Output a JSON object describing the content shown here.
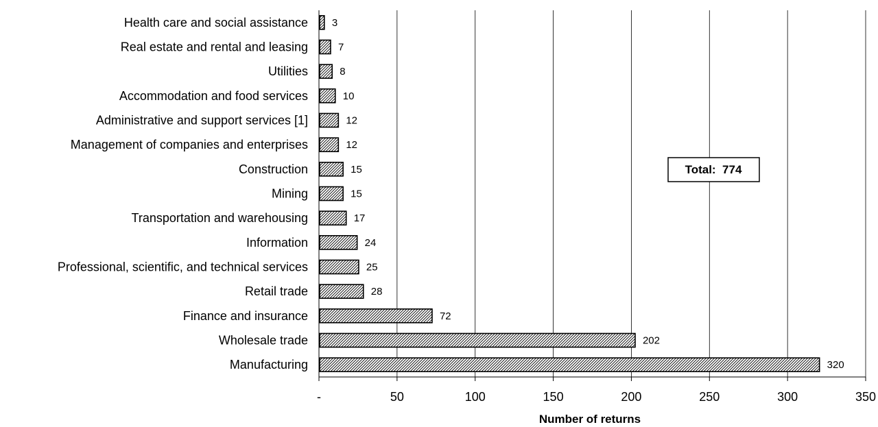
{
  "chart_data": {
    "type": "bar",
    "orientation": "horizontal",
    "categories": [
      "Health care and social assistance",
      "Real estate and rental and leasing",
      "Utilities",
      "Accommodation and food services",
      "Administrative and support services [1]",
      "Management of companies and enterprises",
      "Construction",
      "Mining",
      "Transportation and warehousing",
      "Information",
      "Professional, scientific, and technical services",
      "Retail trade",
      "Finance and insurance",
      "Wholesale trade",
      "Manufacturing"
    ],
    "values": [
      3,
      7,
      8,
      10,
      12,
      12,
      15,
      15,
      17,
      24,
      25,
      28,
      72,
      202,
      320
    ],
    "value_labels": [
      "3",
      "7",
      "8",
      "10",
      "12",
      "12",
      "15",
      "15",
      "17",
      "24",
      "25",
      "28",
      "72",
      "202",
      "320"
    ],
    "xlabel": "Number of returns",
    "ylabel": "",
    "xlim": [
      0,
      350
    ],
    "x_ticks": [
      0,
      50,
      100,
      150,
      200,
      250,
      300,
      350
    ],
    "x_tick_labels": [
      "-",
      "50",
      "100",
      "150",
      "200",
      "250",
      "300",
      "350"
    ],
    "grid": "vertical",
    "bar_fill": "diagonal-hatch",
    "annotation": "Total:  774"
  },
  "colors": {
    "background": "#ffffff",
    "bar_stroke": "#000000",
    "hatch": "#000000",
    "grid": "#000000"
  }
}
